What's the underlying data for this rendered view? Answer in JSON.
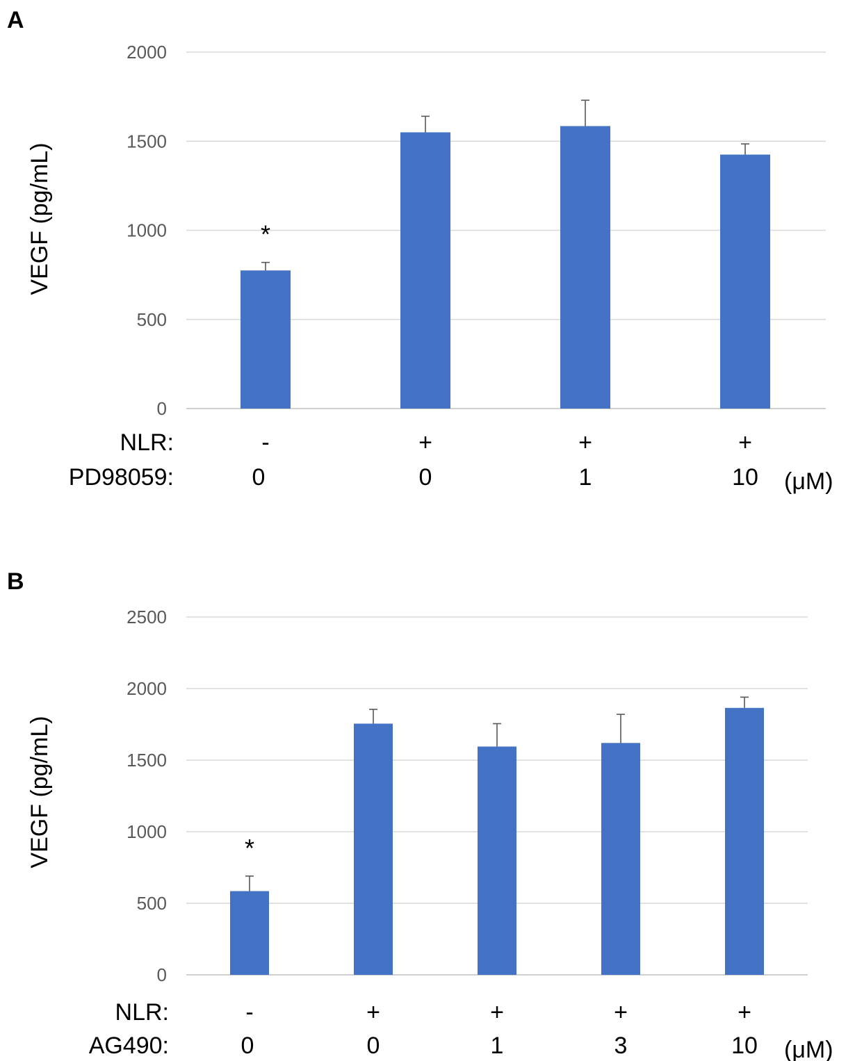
{
  "colors": {
    "bar": "#4472c4",
    "grid": "#d9d9d9",
    "tick_text": "#595959"
  },
  "chart_data": [
    {
      "panel": "A",
      "type": "bar",
      "ylabel": "VEGF (pg/mL)",
      "ylim": [
        0,
        2000
      ],
      "yticks": [
        "0",
        "500",
        "1000",
        "1500",
        "2000"
      ],
      "grid": true,
      "categories": [
        "-/0",
        "+/0",
        "+/1",
        "+/10"
      ],
      "values": [
        775,
        1550,
        1585,
        1425
      ],
      "errors": [
        45,
        90,
        145,
        60
      ],
      "significance": [
        "*",
        "",
        "",
        ""
      ],
      "rows": [
        {
          "label": "NLR:",
          "values": [
            "-",
            "+",
            "+",
            "+"
          ]
        },
        {
          "label": "PD98059:",
          "values": [
            "0",
            "0",
            "1",
            "10"
          ],
          "unit": "(μM)"
        }
      ]
    },
    {
      "panel": "B",
      "type": "bar",
      "ylabel": "VEGF (pg/mL)",
      "ylim": [
        0,
        2500
      ],
      "yticks": [
        "0",
        "500",
        "1000",
        "1500",
        "2000",
        "2500"
      ],
      "grid": true,
      "categories": [
        "-/0",
        "+/0",
        "+/1",
        "+/3",
        "+/10"
      ],
      "values": [
        585,
        1755,
        1595,
        1620,
        1865
      ],
      "errors": [
        105,
        100,
        160,
        200,
        75
      ],
      "significance": [
        "*",
        "",
        "",
        "",
        ""
      ],
      "rows": [
        {
          "label": "NLR:",
          "values": [
            "-",
            "+",
            "+",
            "+",
            "+"
          ]
        },
        {
          "label": "AG490:",
          "values": [
            "0",
            "0",
            "1",
            "3",
            "10"
          ],
          "unit": "(μM)"
        }
      ]
    }
  ]
}
